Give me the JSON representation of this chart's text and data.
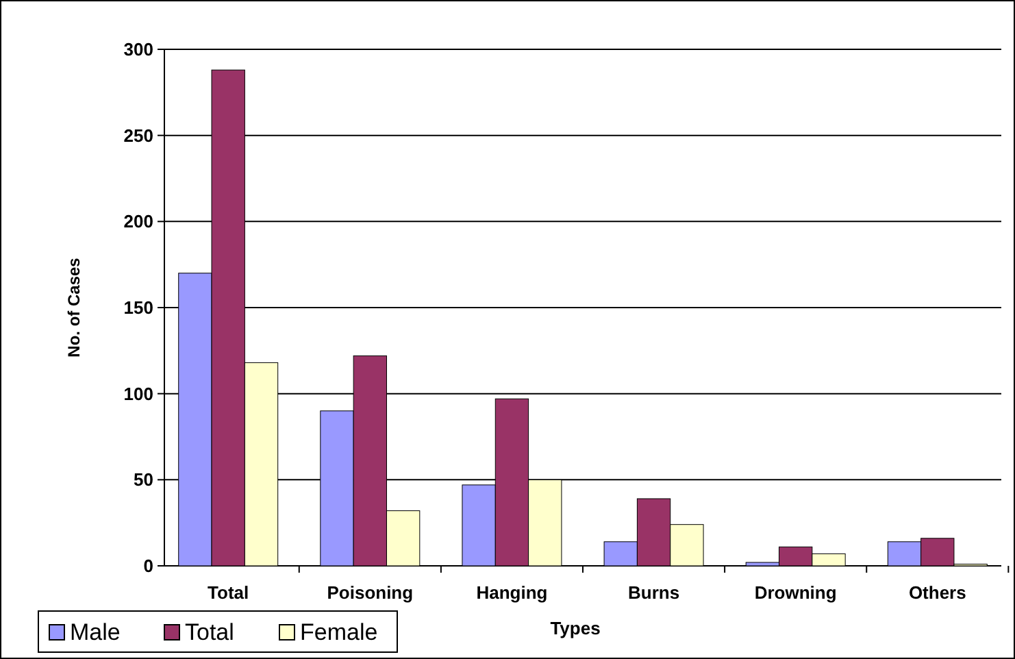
{
  "chart_data": {
    "type": "bar",
    "xlabel": "Types",
    "ylabel": "No. of Cases",
    "categories": [
      "Total",
      "Poisoning",
      "Hanging",
      "Burns",
      "Drowning",
      "Others"
    ],
    "series": [
      {
        "name": "Male",
        "color": "#9999ff",
        "values": [
          170,
          90,
          47,
          14,
          2,
          14
        ]
      },
      {
        "name": "Total",
        "color": "#993366",
        "values": [
          288,
          122,
          97,
          39,
          11,
          16
        ]
      },
      {
        "name": "Female",
        "color": "#ffffcc",
        "values": [
          118,
          32,
          50,
          24,
          7,
          1
        ]
      }
    ],
    "ylim": [
      0,
      300
    ],
    "yticks": [
      0,
      50,
      100,
      150,
      200,
      250,
      300
    ],
    "grid": "y",
    "legend": "bottom left"
  }
}
